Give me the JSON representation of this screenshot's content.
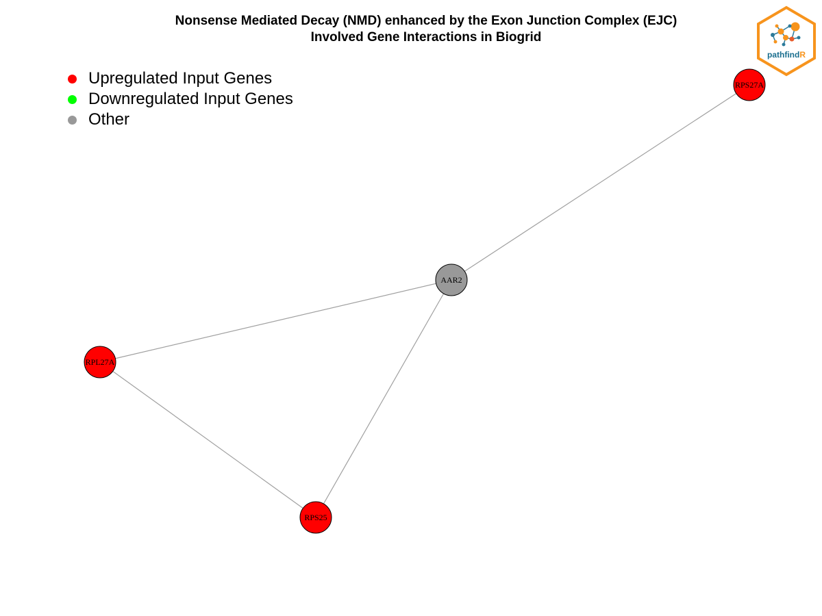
{
  "title": {
    "line1": "Nonsense Mediated Decay (NMD) enhanced by the Exon Junction Complex (EJC)",
    "line2": "Involved Gene Interactions in Biogrid"
  },
  "legend": [
    {
      "label": "Upregulated Input Genes",
      "color": "#ff0000"
    },
    {
      "label": "Downregulated Input Genes",
      "color": "#00ff00"
    },
    {
      "label": "Other",
      "color": "#999999"
    }
  ],
  "nodes": [
    {
      "id": "AAR2",
      "label": "AAR2",
      "type": "other",
      "color": "#999999"
    },
    {
      "id": "RPS27A",
      "label": "RPS27A",
      "type": "upregulated",
      "color": "#ff0000"
    },
    {
      "id": "RPL27A",
      "label": "RPL27A",
      "type": "upregulated",
      "color": "#ff0000"
    },
    {
      "id": "RPS25",
      "label": "RPS25",
      "type": "upregulated",
      "color": "#ff0000"
    }
  ],
  "edges": [
    {
      "source": "AAR2",
      "target": "RPS27A"
    },
    {
      "source": "AAR2",
      "target": "RPL27A"
    },
    {
      "source": "AAR2",
      "target": "RPS25"
    },
    {
      "source": "RPL27A",
      "target": "RPS25"
    }
  ],
  "logo": {
    "text_main": "pathfind",
    "text_accent": "R",
    "border_color": "#f7941d",
    "text_color": "#1a6e8e",
    "accent_color": "#f7941d"
  },
  "colors": {
    "edge": "#a0a0a0",
    "node_border": "#000000"
  }
}
